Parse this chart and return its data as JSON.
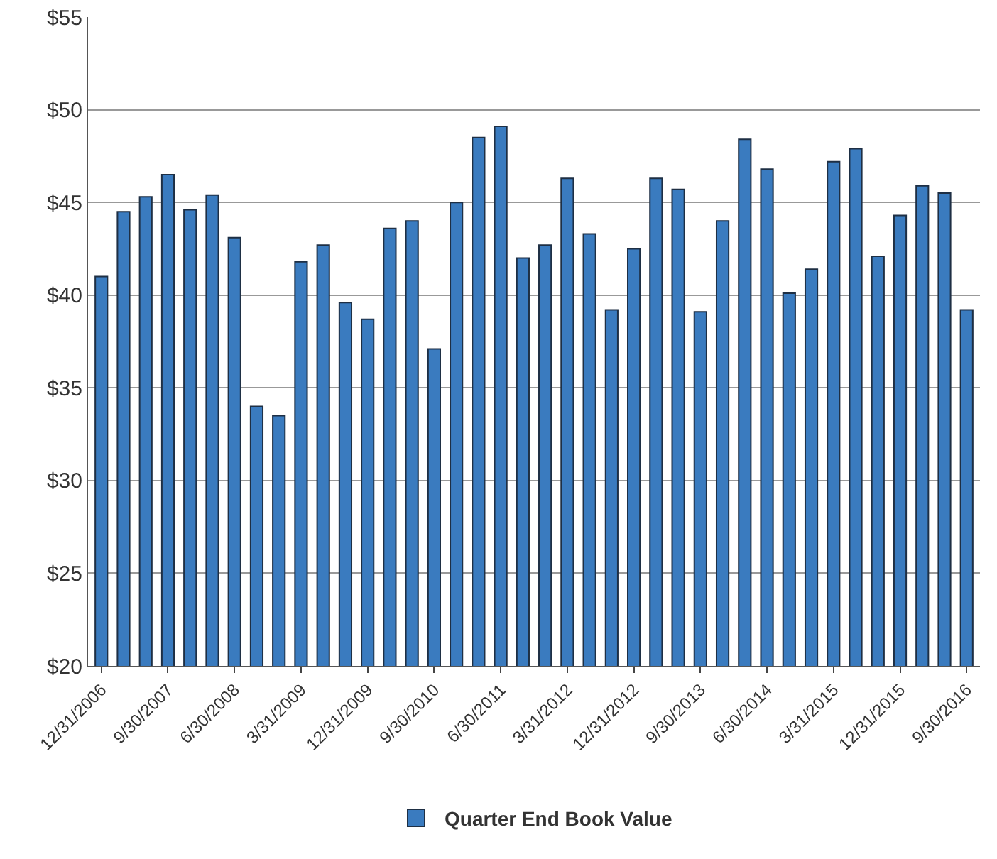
{
  "chart_data": {
    "type": "bar",
    "categories": [
      "12/31/2006",
      null,
      null,
      "9/30/2007",
      null,
      null,
      "6/30/2008",
      null,
      null,
      "3/31/2009",
      null,
      null,
      "12/31/2009",
      null,
      null,
      "9/30/2010",
      null,
      null,
      "6/30/2011",
      null,
      null,
      "3/31/2012",
      null,
      null,
      "12/31/2012",
      null,
      null,
      "9/30/2013",
      null,
      null,
      "6/30/2014",
      null,
      null,
      "3/31/2015",
      null,
      null,
      "12/31/2015",
      null,
      null,
      "9/30/2016"
    ],
    "series": [
      {
        "name": "Quarter End Book Value",
        "color": "#3a7bbf",
        "values": [
          41.0,
          44.5,
          45.3,
          46.5,
          44.6,
          45.4,
          43.1,
          34.0,
          33.5,
          41.8,
          42.7,
          39.6,
          38.7,
          43.6,
          44.0,
          37.1,
          45.0,
          48.5,
          49.1,
          42.0,
          42.7,
          46.3,
          43.3,
          39.2,
          42.5,
          46.3,
          45.7,
          39.1,
          44.0,
          48.4,
          46.8,
          40.1,
          41.4,
          47.2,
          47.9,
          42.1,
          44.3,
          45.9,
          45.5,
          39.2
        ]
      }
    ],
    "ylim": [
      20,
      55
    ],
    "yticks": [
      {
        "value": 20,
        "label": "$20"
      },
      {
        "value": 25,
        "label": "$25"
      },
      {
        "value": 30,
        "label": "$30"
      },
      {
        "value": 35,
        "label": "$35"
      },
      {
        "value": 40,
        "label": "$40"
      },
      {
        "value": 45,
        "label": "$45"
      },
      {
        "value": 50,
        "label": "$50"
      },
      {
        "value": 55,
        "label": "$55"
      }
    ],
    "grid": "y",
    "legend": "bottom"
  }
}
